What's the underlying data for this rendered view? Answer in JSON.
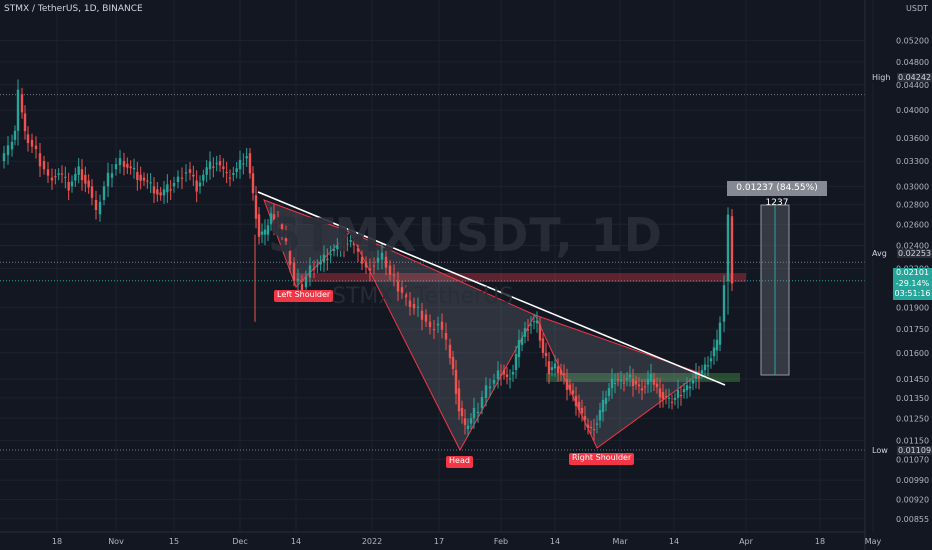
{
  "header": {
    "symbol_line": "STMX / TetherUS, 1D, BINANCE",
    "currency_label": "USDT"
  },
  "watermark": {
    "line1": "STMXUSDT, 1D",
    "line2": "STMX / TetherUS"
  },
  "measure_label": "0.01237 (84.55%) 1237",
  "labels": {
    "high_label": "High",
    "high_value": "0.04242",
    "avg_label": "Avg",
    "avg_value": "0.02253",
    "low_label": "Low",
    "low_value": "0.01109",
    "current_price": "0.02101",
    "current_change": "-29.14%",
    "current_timer": "03:51:16"
  },
  "annotations": {
    "left_shoulder": "Left Shoulder",
    "head": "Head",
    "right_shoulder": "Right Shoulder"
  },
  "colors": {
    "background": "#131722",
    "up": "#26a69a",
    "down": "#ef5350",
    "trendline": "#ffffff",
    "resistance_zone": "#f23645",
    "support_zone": "#4caf50",
    "annotation_label": "#f23645"
  },
  "chart_data": {
    "type": "candlestick",
    "title": "STMX / TetherUS, 1D, BINANCE",
    "y_scale": "log",
    "ylim": [
      0.0082,
      0.0575
    ],
    "y_ticks": [
      "0.05200",
      "0.04800",
      "0.04400",
      "0.04000",
      "0.03600",
      "0.03300",
      "0.03000",
      "0.02800",
      "0.02600",
      "0.02400",
      "0.02200",
      "0.01900",
      "0.01750",
      "0.01600",
      "0.01450",
      "0.01350",
      "0.01250",
      "0.01150",
      "0.01070",
      "0.00990",
      "0.00920",
      "0.00855"
    ],
    "x_ticks": [
      "18",
      "Nov",
      "15",
      "Dec",
      "14",
      "2022",
      "17",
      "Feb",
      "14",
      "Mar",
      "14",
      "Apr",
      "18",
      "May"
    ],
    "price_levels": {
      "high": 0.04242,
      "avg": 0.02253,
      "low": 0.01109,
      "current": 0.02101
    },
    "pattern_points": {
      "left_shoulder": 0.01985,
      "head": 0.01109,
      "right_shoulder": 0.01116
    },
    "measurement": {
      "change": 0.01237,
      "change_percent": 84.55,
      "bars": 1237
    }
  }
}
